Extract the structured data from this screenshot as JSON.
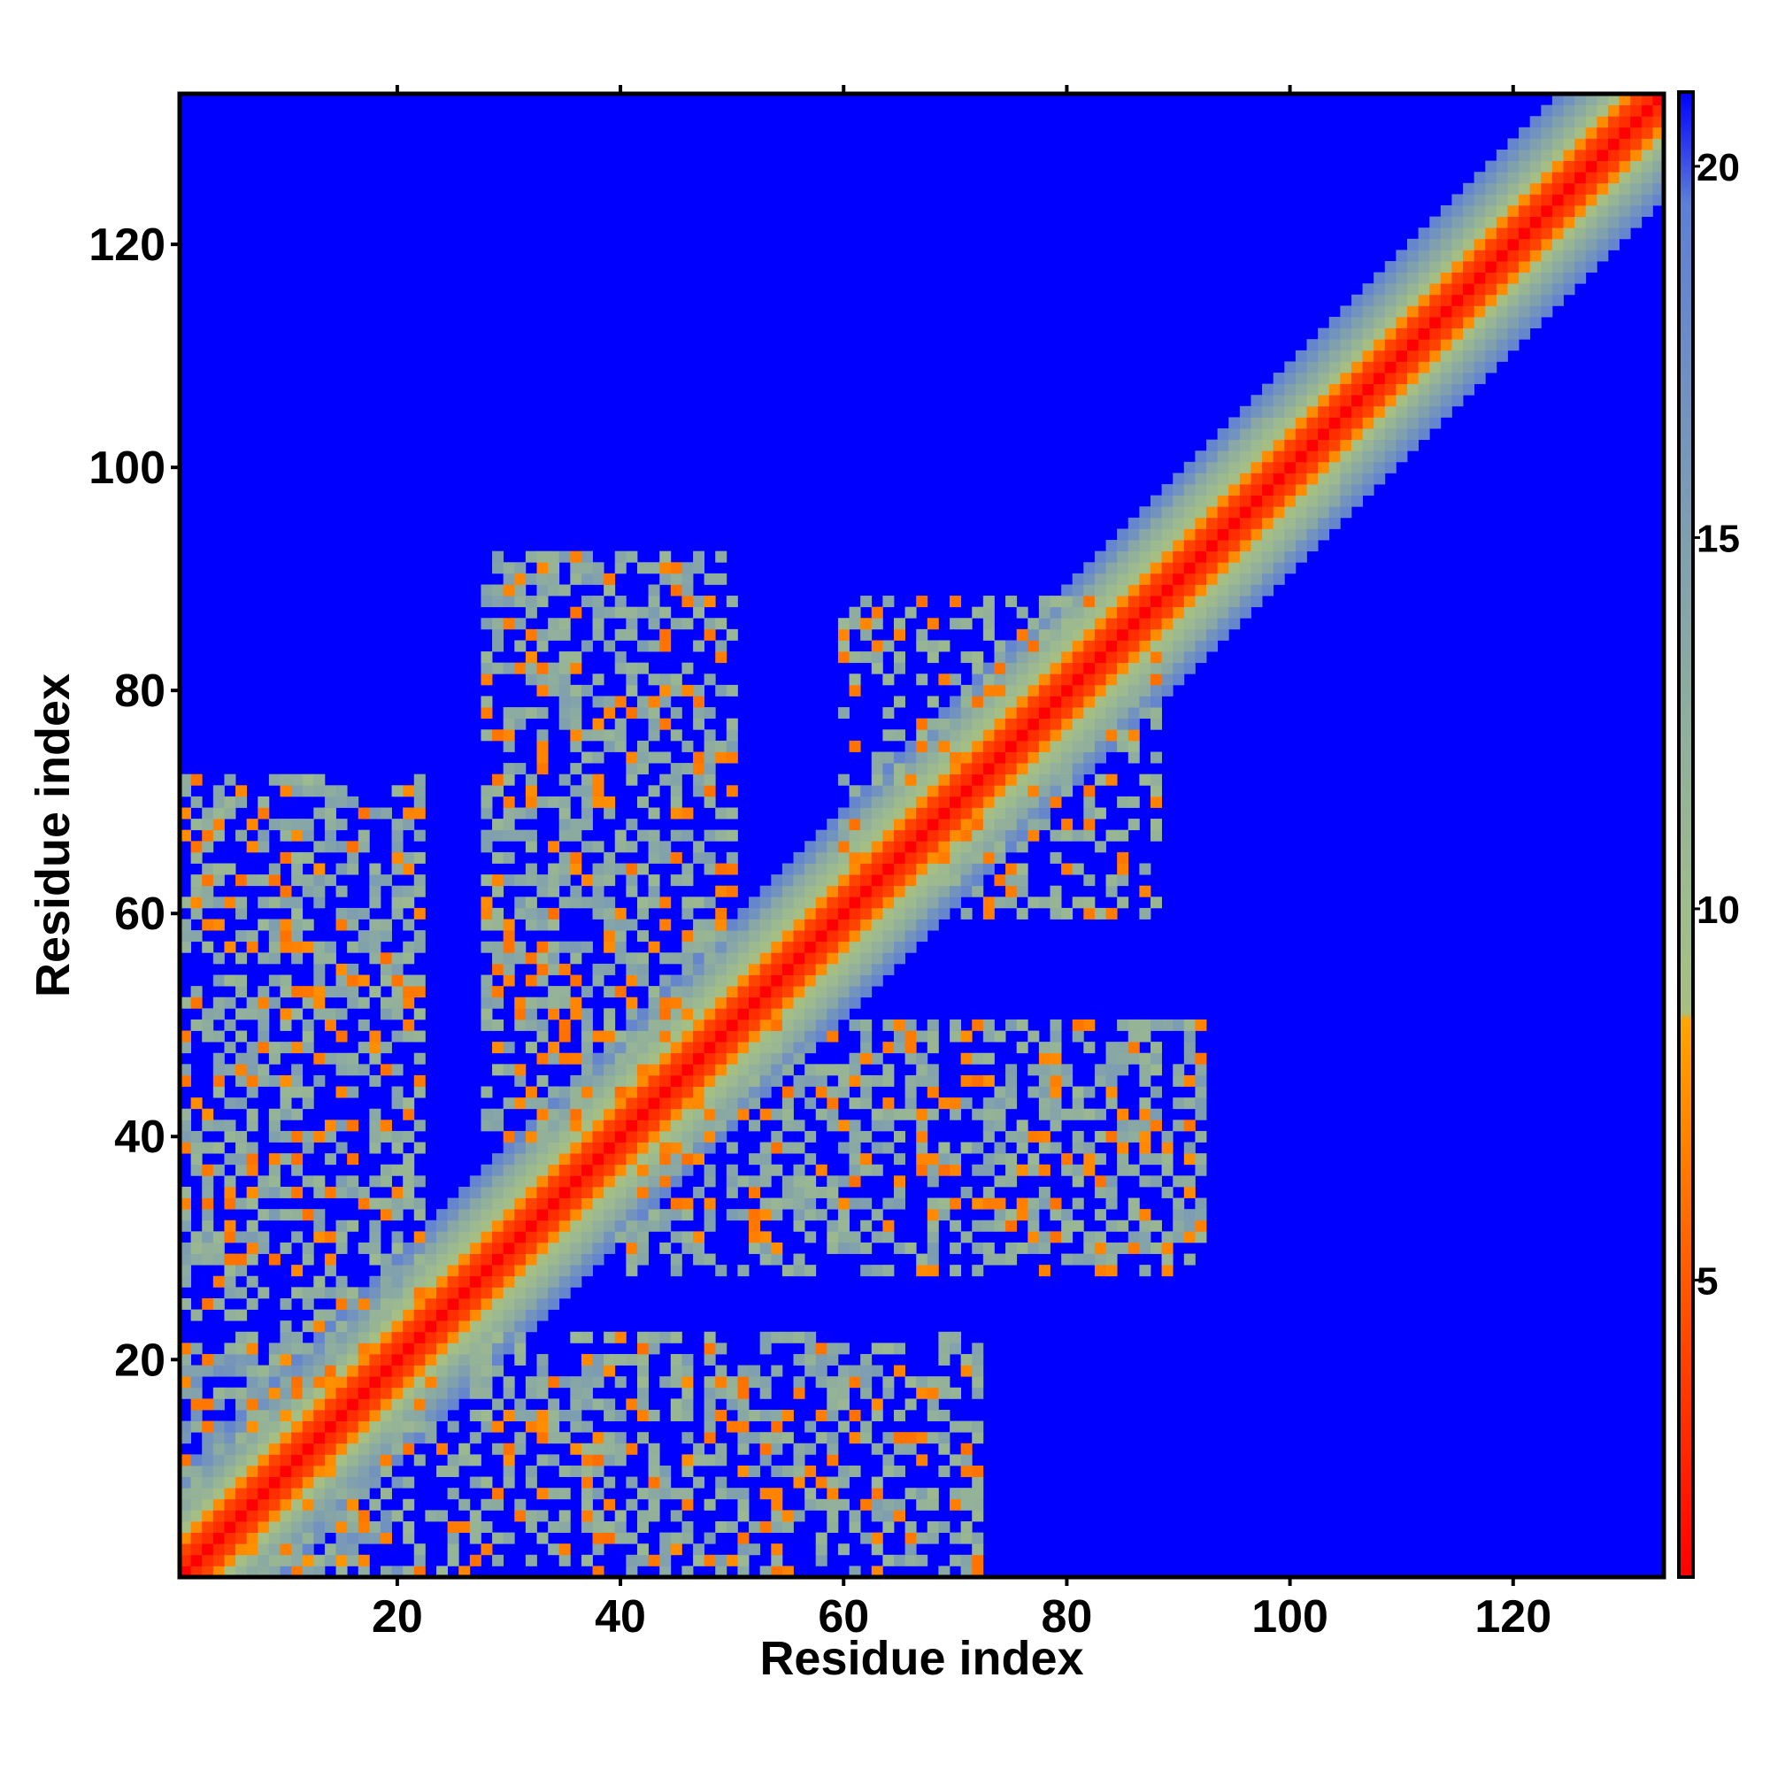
{
  "chart_data": {
    "type": "heatmap",
    "title": "",
    "xlabel": "Residue index",
    "ylabel": "Residue index",
    "xlim": [
      1,
      133
    ],
    "ylim": [
      1,
      133
    ],
    "x_ticks": [
      20,
      40,
      60,
      80,
      100,
      120
    ],
    "y_ticks": [
      20,
      40,
      60,
      80,
      100,
      120
    ],
    "colorbar": {
      "range": [
        1,
        21
      ],
      "ticks": [
        5,
        10,
        15,
        20
      ],
      "stops": [
        {
          "value": 1,
          "color": "#ff0000"
        },
        {
          "value": 5,
          "color": "#ff5a00"
        },
        {
          "value": 8.5,
          "color": "#ffa500"
        },
        {
          "value": 8.6,
          "color": "#a8bf80"
        },
        {
          "value": 10,
          "color": "#9fbc8c"
        },
        {
          "value": 15,
          "color": "#7f9faf"
        },
        {
          "value": 19.5,
          "color": "#5d7fd5"
        },
        {
          "value": 21,
          "color": "#0000ff"
        }
      ]
    },
    "description_values": {
      "diagonal": "distance ~1-5 along i=j",
      "background": "distance >= 21"
    },
    "contact_regions": [
      {
        "x": [
          1,
          20
        ],
        "y": [
          1,
          20
        ],
        "strength": 1.0
      },
      {
        "x": [
          1,
          20
        ],
        "y": [
          30,
          70
        ],
        "strength": 0.8
      },
      {
        "x": [
          28,
          50
        ],
        "y": [
          40,
          92
        ],
        "strength": 0.8
      },
      {
        "x": [
          20,
          72
        ],
        "y": [
          1,
          22
        ],
        "strength": 0.7
      },
      {
        "x": [
          40,
          92
        ],
        "y": [
          28,
          50
        ],
        "strength": 0.8
      },
      {
        "x": [
          60,
          88
        ],
        "y": [
          60,
          88
        ],
        "strength": 0.6
      },
      {
        "x": [
          8,
          20
        ],
        "y": [
          2,
          14
        ],
        "strength": 1.0
      }
    ],
    "colors": {
      "background": "#0000ff",
      "frame": "#000000"
    }
  }
}
